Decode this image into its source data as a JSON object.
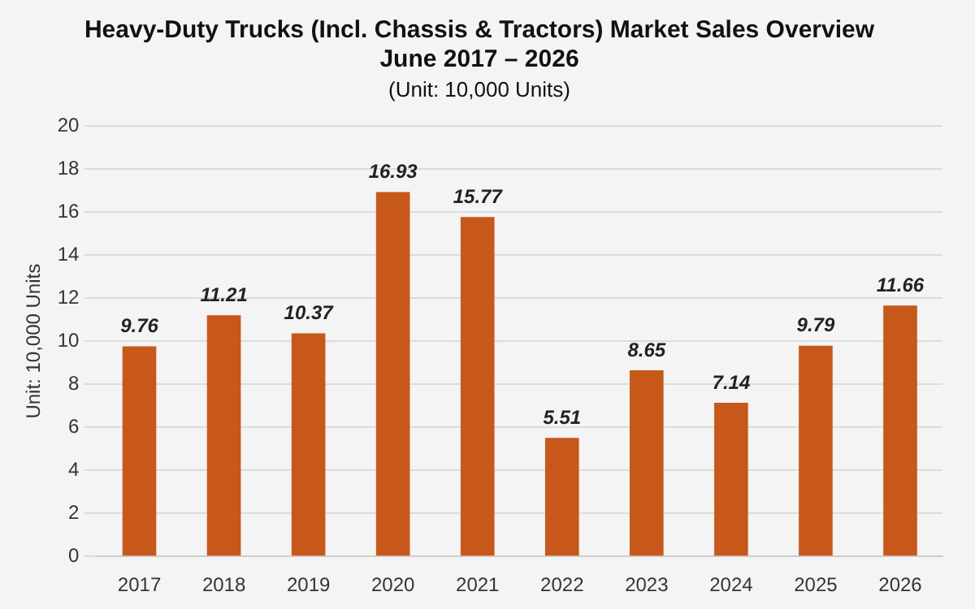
{
  "chart_data": {
    "type": "bar",
    "title": "Heavy-Duty Trucks (Incl. Chassis & Tractors) Market Sales Overview\nJune 2017 – 2026",
    "subtitle": "(Unit: 10,000 Units)",
    "ylabel": "Unit: 10,000 Units",
    "categories": [
      "2017",
      "2018",
      "2019",
      "2020",
      "2021",
      "2022",
      "2023",
      "2024",
      "2025",
      "2026"
    ],
    "values": [
      9.76,
      11.21,
      10.37,
      16.93,
      15.77,
      5.51,
      8.65,
      7.14,
      9.79,
      11.66
    ],
    "color": "#c8581a",
    "ylim": [
      0,
      20
    ],
    "yticks": [
      0,
      2,
      4,
      6,
      8,
      10,
      12,
      14,
      16,
      18,
      20
    ],
    "grid": "y",
    "data_labels": true,
    "legend": false
  }
}
